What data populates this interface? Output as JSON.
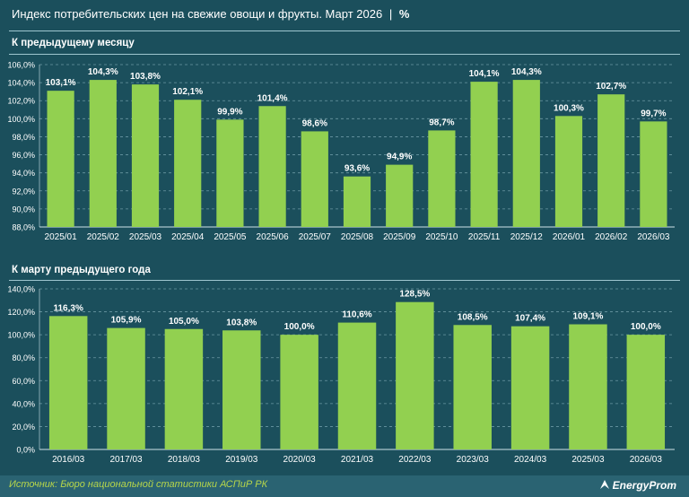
{
  "header": {
    "title": "Индекс потребительских цен на свежие овощи и фрукты. Март 2026",
    "separator": "|",
    "unit": "%"
  },
  "colors": {
    "background": "#1b4f5c",
    "bar": "#92d050",
    "grid": "#6b97a2",
    "accent_text": "#b7d64a"
  },
  "chart_data": [
    {
      "type": "bar",
      "title": "К предыдущему месяцу",
      "categories": [
        "2025/01",
        "2025/02",
        "2025/03",
        "2025/04",
        "2025/05",
        "2025/06",
        "2025/07",
        "2025/08",
        "2025/09",
        "2025/10",
        "2025/11",
        "2025/12",
        "2026/01",
        "2026/02",
        "2026/03"
      ],
      "values": [
        103.1,
        104.3,
        103.8,
        102.1,
        99.9,
        101.4,
        98.6,
        93.6,
        94.9,
        98.7,
        104.1,
        104.3,
        100.3,
        102.7,
        99.7
      ],
      "labels": [
        "103,1%",
        "104,3%",
        "103,8%",
        "102,1%",
        "99,9%",
        "101,4%",
        "98,6%",
        "93,6%",
        "94,9%",
        "98,7%",
        "104,1%",
        "104,3%",
        "100,3%",
        "102,7%",
        "99,7%"
      ],
      "yticks": [
        "88,0%",
        "90,0%",
        "92,0%",
        "94,0%",
        "96,0%",
        "98,0%",
        "100,0%",
        "102,0%",
        "104,0%",
        "106,0%"
      ],
      "ylim": [
        88,
        106
      ],
      "ystep": 2,
      "grid": true
    },
    {
      "type": "bar",
      "title": "К марту предыдущего года",
      "categories": [
        "2016/03",
        "2017/03",
        "2018/03",
        "2019/03",
        "2020/03",
        "2021/03",
        "2022/03",
        "2023/03",
        "2024/03",
        "2025/03",
        "2026/03"
      ],
      "values": [
        116.3,
        105.9,
        105.0,
        103.8,
        100.0,
        110.6,
        128.5,
        108.5,
        107.4,
        109.1,
        100.0
      ],
      "labels": [
        "116,3%",
        "105,9%",
        "105,0%",
        "103,8%",
        "100,0%",
        "110,6%",
        "128,5%",
        "108,5%",
        "107,4%",
        "109,1%",
        "100,0%"
      ],
      "yticks": [
        "0,0%",
        "20,0%",
        "40,0%",
        "60,0%",
        "80,0%",
        "100,0%",
        "120,0%",
        "140,0%"
      ],
      "ylim": [
        0,
        140
      ],
      "ystep": 20,
      "grid": true
    }
  ],
  "footer": {
    "source": "Источник: Бюро национальной статистики АСПиР РК",
    "brand": "EnergyProm"
  }
}
